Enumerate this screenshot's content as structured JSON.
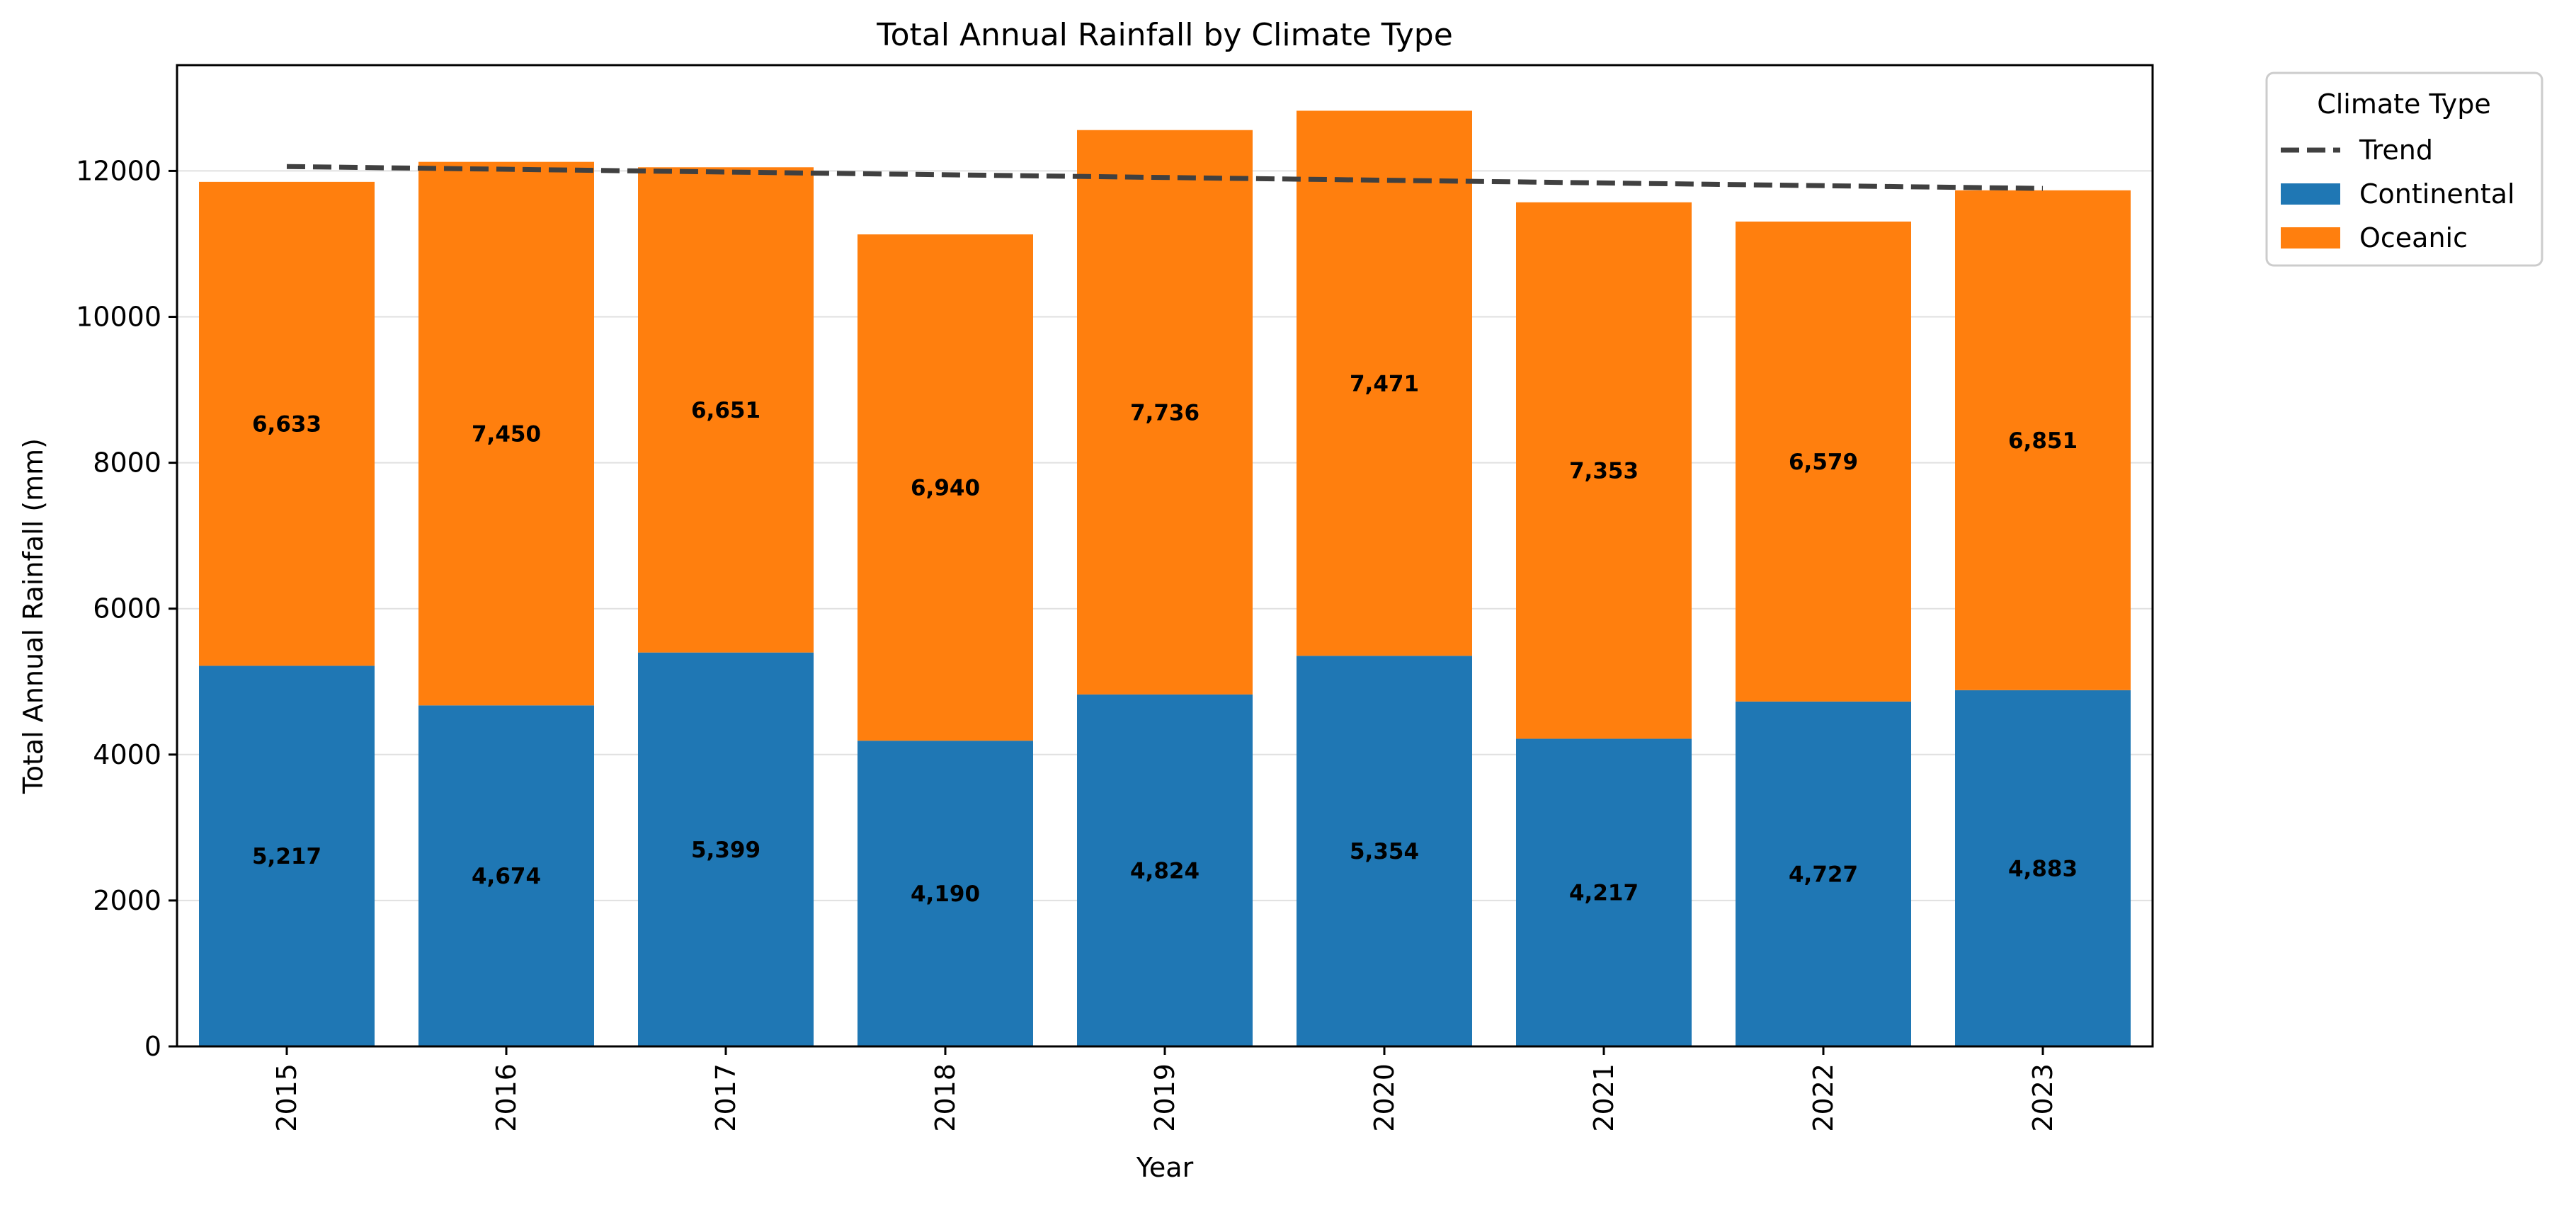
{
  "chart_data": {
    "type": "bar",
    "stacked": true,
    "title": "Total Annual Rainfall by Climate Type",
    "xlabel": "Year",
    "ylabel": "Total Annual Rainfall (mm)",
    "categories": [
      "2015",
      "2016",
      "2017",
      "2018",
      "2019",
      "2020",
      "2021",
      "2022",
      "2023"
    ],
    "series": [
      {
        "name": "Continental",
        "color": "#1f77b4",
        "values": [
          5217,
          4674,
          5399,
          4190,
          4824,
          5354,
          4217,
          4727,
          4883
        ]
      },
      {
        "name": "Oceanic",
        "color": "#ff7f0e",
        "values": [
          6633,
          7450,
          6651,
          6940,
          7736,
          7471,
          7353,
          6579,
          6851
        ]
      }
    ],
    "data_labels": {
      "Continental": [
        "5,217",
        "4,674",
        "5,399",
        "4,190",
        "4,824",
        "5,354",
        "4,217",
        "4,727",
        "4,883"
      ],
      "Oceanic": [
        "6,633",
        "7,450",
        "6,651",
        "6,940",
        "7,736",
        "7,471",
        "7,353",
        "6,579",
        "6,851"
      ]
    },
    "trend": {
      "name": "Trend",
      "color": "#404040",
      "style": "dashed",
      "start": 12060,
      "end": 11760
    },
    "ylim": [
      0,
      13450
    ],
    "yticks": [
      0,
      2000,
      4000,
      6000,
      8000,
      10000,
      12000
    ],
    "grid": "y",
    "legend": {
      "title": "Climate Type",
      "placement": "outside-top-right",
      "entries": [
        "Trend",
        "Continental",
        "Oceanic"
      ]
    }
  }
}
